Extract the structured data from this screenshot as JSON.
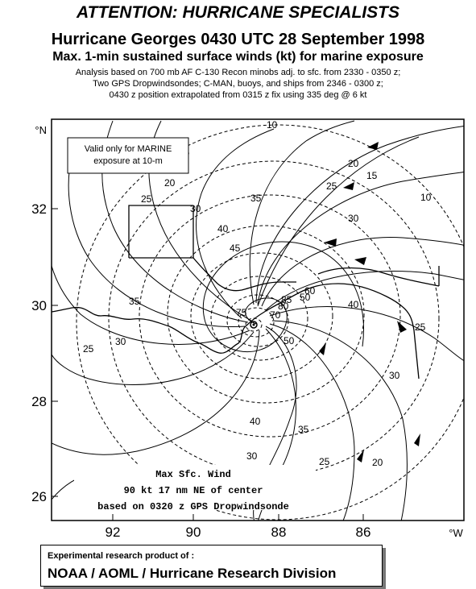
{
  "header": {
    "attention": "ATTENTION: HURRICANE SPECIALISTS",
    "title": "Hurricane Georges 0430 UTC 28 September 1998",
    "subtitle": "Max. 1-min sustained surface winds (kt) for marine exposure",
    "note_lines": [
      "Analysis based on 700 mb AF C-130 Recon minobs adj. to sfc. from 2330 - 0350 z;",
      "Two GPS Dropwindsondes; C-MAN, buoys, and ships from 2346 - 0300 z;",
      "0430 z position extrapolated from 0315 z fix using 335 deg @ 6 kt"
    ]
  },
  "map": {
    "lat_unit": "°N",
    "lon_unit": "°W",
    "lat_ticks": [
      "32",
      "30",
      "28",
      "26"
    ],
    "lon_ticks": [
      "92",
      "90",
      "88",
      "86"
    ],
    "valid_box": [
      "Valid only for MARINE",
      "exposure at 10-m"
    ],
    "max_wind": [
      "Max Sfc. Wind",
      "90 kt 17 nm NE of center",
      "based on 0320 z GPS Dropwindsonde"
    ],
    "isotach_labels": [
      "10",
      "15",
      "20",
      "25",
      "30",
      "35",
      "40",
      "45",
      "50",
      "60",
      "70",
      "75",
      "80",
      "85"
    ],
    "colors": {
      "ink": "#000000",
      "paper": "#ffffff"
    }
  },
  "footer": {
    "line1": "Experimental research product of :",
    "line2": "NOAA / AOML / Hurricane Research Division"
  }
}
